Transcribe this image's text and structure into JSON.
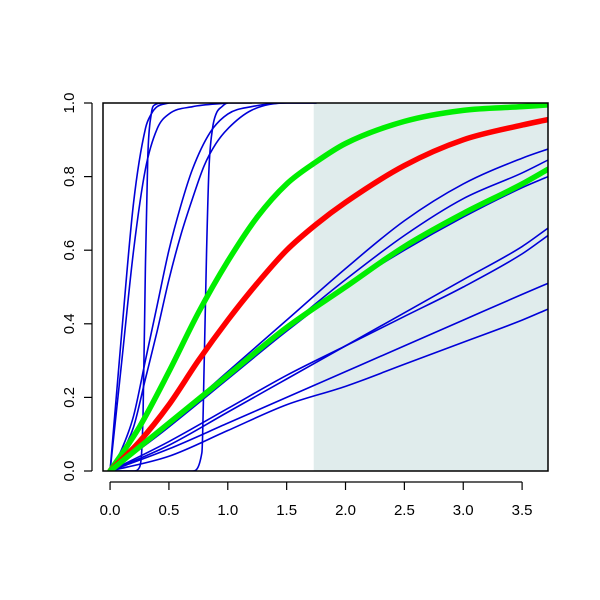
{
  "chart_data": {
    "type": "line",
    "title": "",
    "xlabel": "",
    "ylabel": "",
    "xlim": [
      -0.06,
      3.72
    ],
    "ylim": [
      0,
      1
    ],
    "x_ticks": [
      0.0,
      0.5,
      1.0,
      1.5,
      2.0,
      2.5,
      3.0,
      3.5
    ],
    "x_tick_labels": [
      "0.0",
      "0.5",
      "1.0",
      "1.5",
      "2.0",
      "2.5",
      "3.0",
      "3.5"
    ],
    "y_ticks": [
      0.0,
      0.2,
      0.4,
      0.6,
      0.8,
      1.0
    ],
    "y_tick_labels": [
      "0.0",
      "0.2",
      "0.4",
      "0.6",
      "0.8",
      "1.0"
    ],
    "grid": false,
    "legend": "none",
    "shaded_region": {
      "x_from": 1.73,
      "x_to": 3.72,
      "color": "#e0ecec"
    },
    "colors": {
      "blue": "#0000d8",
      "red": "#ff0000",
      "green": "#00ee00"
    },
    "series": [
      {
        "color": "#0000d8",
        "x": [
          0,
          0.1,
          0.2,
          0.3,
          0.35,
          0.4,
          0.5
        ],
        "y": [
          0,
          0.38,
          0.73,
          0.93,
          0.97,
          0.99,
          1.0
        ]
      },
      {
        "color": "#0000d8",
        "x": [
          0,
          0.1,
          0.2,
          0.3,
          0.4,
          0.5,
          0.7,
          1.0
        ],
        "y": [
          0,
          0.3,
          0.6,
          0.82,
          0.93,
          0.97,
          0.99,
          1.0
        ]
      },
      {
        "color": "#0000d8",
        "x": [
          0,
          0.2,
          0.25,
          0.28,
          0.3,
          0.32,
          0.35,
          0.38,
          0.45,
          0.6
        ],
        "y": [
          0,
          0,
          0.01,
          0.15,
          0.55,
          0.85,
          0.97,
          0.995,
          1.0,
          1.0
        ]
      },
      {
        "color": "#0000d8",
        "x": [
          0,
          0.1,
          0.2,
          0.3,
          0.4,
          0.5,
          0.6,
          0.7,
          0.85,
          1.0,
          1.2,
          1.5,
          1.75
        ],
        "y": [
          0,
          0.06,
          0.15,
          0.3,
          0.45,
          0.6,
          0.72,
          0.82,
          0.92,
          0.97,
          0.99,
          1.0,
          1.0
        ]
      },
      {
        "color": "#0000d8",
        "x": [
          0,
          0.1,
          0.2,
          0.3,
          0.4,
          0.5,
          0.6,
          0.7,
          0.8,
          0.9,
          1.0,
          1.2,
          1.5,
          1.75
        ],
        "y": [
          0,
          0.05,
          0.12,
          0.25,
          0.38,
          0.52,
          0.64,
          0.74,
          0.83,
          0.89,
          0.93,
          0.98,
          1.0,
          1.0
        ]
      },
      {
        "color": "#0000d8",
        "x": [
          0,
          0.2,
          0.3,
          0.5,
          0.7,
          0.78,
          0.8,
          0.82,
          0.84,
          0.87,
          0.9,
          0.95,
          1.0,
          1.2
        ],
        "y": [
          0,
          0,
          0,
          0,
          0,
          0.05,
          0.3,
          0.6,
          0.82,
          0.93,
          0.97,
          0.99,
          1.0,
          1.0
        ]
      },
      {
        "color": "#0000d8",
        "x": [
          0,
          0.5,
          1.0,
          1.5,
          2.0,
          2.5,
          3.0,
          3.5,
          3.72
        ],
        "y": [
          0,
          0.13,
          0.27,
          0.41,
          0.55,
          0.68,
          0.78,
          0.85,
          0.875
        ]
      },
      {
        "color": "#0000d8",
        "x": [
          0,
          0.5,
          1.0,
          1.5,
          2.0,
          2.5,
          3.0,
          3.5,
          3.72
        ],
        "y": [
          0,
          0.12,
          0.26,
          0.39,
          0.52,
          0.64,
          0.74,
          0.81,
          0.845
        ]
      },
      {
        "color": "#0000d8",
        "x": [
          0,
          0.5,
          1.0,
          1.5,
          2.0,
          2.5,
          3.0,
          3.5,
          3.72
        ],
        "y": [
          0,
          0.12,
          0.25,
          0.38,
          0.5,
          0.6,
          0.69,
          0.77,
          0.8
        ]
      },
      {
        "color": "#0000d8",
        "x": [
          0,
          0.5,
          1.0,
          1.5,
          2.0,
          2.5,
          3.0,
          3.5,
          3.72
        ],
        "y": [
          0,
          0.07,
          0.16,
          0.25,
          0.34,
          0.43,
          0.52,
          0.61,
          0.66
        ]
      },
      {
        "color": "#0000d8",
        "x": [
          0,
          0.5,
          1.0,
          1.5,
          2.0,
          2.5,
          3.0,
          3.5,
          3.72
        ],
        "y": [
          0,
          0.08,
          0.17,
          0.26,
          0.34,
          0.42,
          0.5,
          0.59,
          0.64
        ]
      },
      {
        "color": "#0000d8",
        "x": [
          0,
          0.5,
          1.0,
          1.5,
          2.0,
          2.5,
          3.0,
          3.5,
          3.72
        ],
        "y": [
          0,
          0.06,
          0.13,
          0.2,
          0.27,
          0.34,
          0.41,
          0.48,
          0.51
        ]
      },
      {
        "color": "#0000d8",
        "x": [
          0,
          0.5,
          1.0,
          1.5,
          2.0,
          2.5,
          3.0,
          3.5,
          3.72
        ],
        "y": [
          0,
          0.04,
          0.11,
          0.18,
          0.23,
          0.29,
          0.35,
          0.41,
          0.44
        ]
      },
      {
        "color": "#00ee00",
        "x": [
          0,
          0.25,
          0.5,
          0.75,
          1.0,
          1.25,
          1.5,
          1.75,
          2.0,
          2.5,
          3.0,
          3.5,
          3.72
        ],
        "y": [
          0,
          0.12,
          0.27,
          0.43,
          0.57,
          0.69,
          0.78,
          0.84,
          0.89,
          0.95,
          0.98,
          0.99,
          0.995
        ]
      },
      {
        "color": "#ff0000",
        "x": [
          0,
          0.25,
          0.5,
          0.75,
          1.0,
          1.25,
          1.5,
          1.75,
          2.0,
          2.5,
          3.0,
          3.5,
          3.72
        ],
        "y": [
          0,
          0.08,
          0.18,
          0.3,
          0.41,
          0.51,
          0.6,
          0.67,
          0.73,
          0.83,
          0.9,
          0.94,
          0.955
        ]
      },
      {
        "color": "#00ee00",
        "x": [
          0,
          0.5,
          1.0,
          1.5,
          2.0,
          2.5,
          3.0,
          3.5,
          3.72
        ],
        "y": [
          0,
          0.13,
          0.26,
          0.39,
          0.5,
          0.61,
          0.7,
          0.78,
          0.82
        ]
      }
    ]
  }
}
